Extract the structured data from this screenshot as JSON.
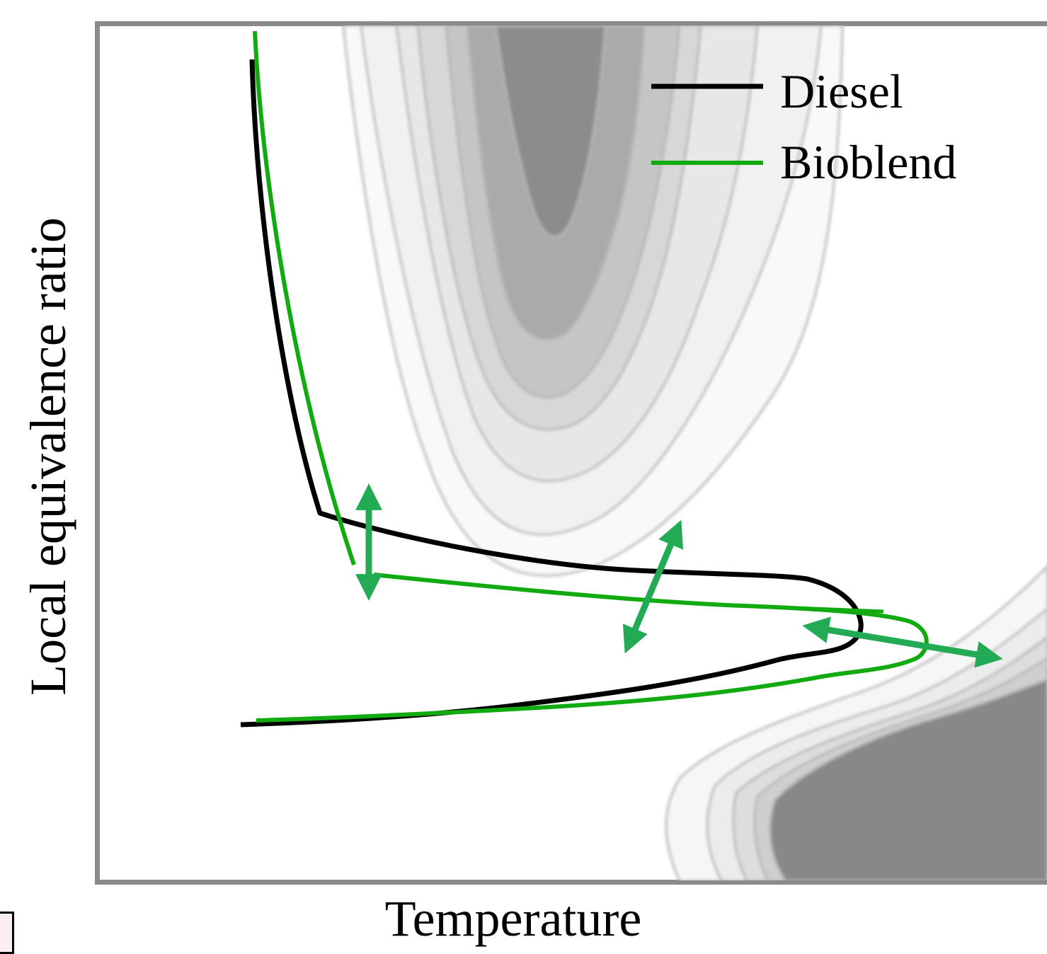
{
  "chart_data": {
    "type": "line",
    "title": "",
    "xlabel": "Temperature",
    "ylabel": "Local equivalence ratio",
    "axis_ticks": "none",
    "background": "grayscale contour map",
    "series": [
      {
        "name": "Diesel",
        "color": "#000000"
      },
      {
        "name": "Bioblend",
        "color": "#11aa11"
      }
    ],
    "annotations": [
      {
        "type": "double-arrow",
        "color": "#22aa55"
      },
      {
        "type": "double-arrow",
        "color": "#22aa55"
      },
      {
        "type": "double-arrow",
        "color": "#22aa55"
      }
    ],
    "legend": {
      "placement": "top-right"
    }
  }
}
